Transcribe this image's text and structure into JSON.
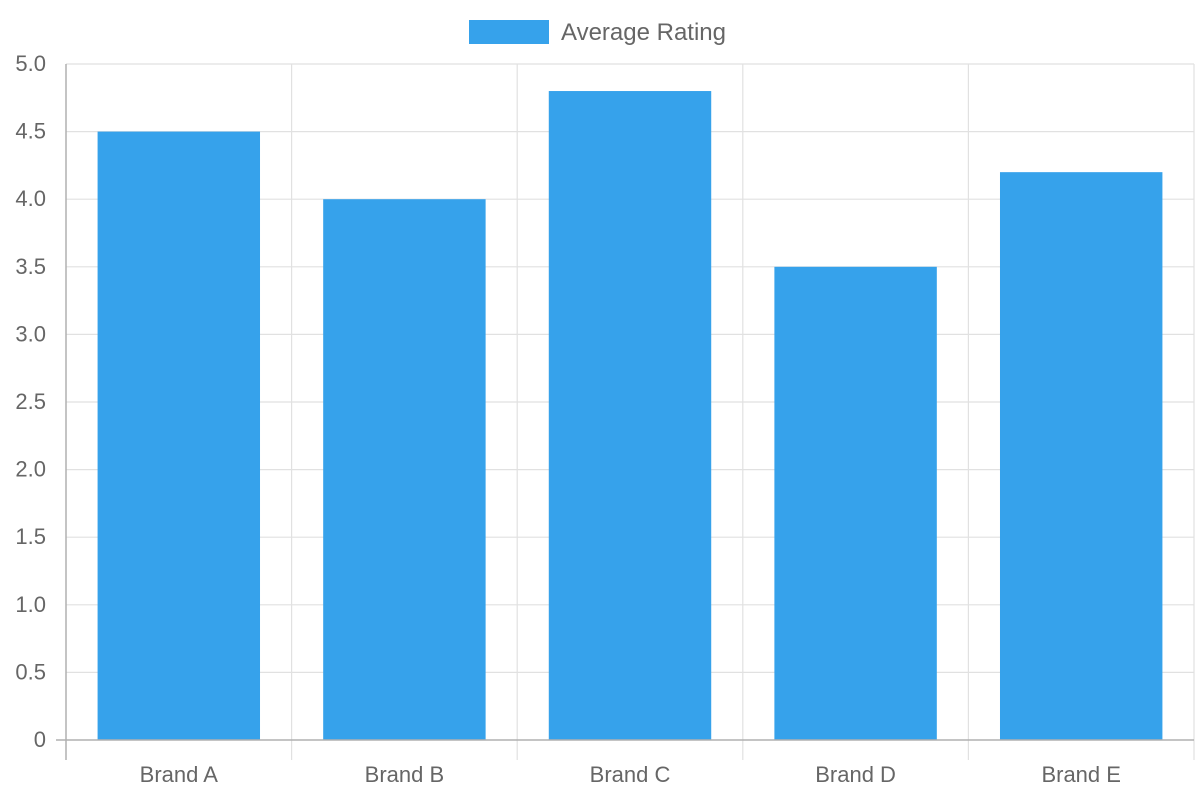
{
  "chart_data": {
    "type": "bar",
    "categories": [
      "Brand A",
      "Brand B",
      "Brand C",
      "Brand D",
      "Brand E"
    ],
    "series": [
      {
        "name": "Average Rating",
        "values": [
          4.5,
          4.0,
          4.8,
          3.5,
          4.2
        ],
        "color": "#36a2eb"
      }
    ],
    "ylim": [
      0,
      5
    ],
    "yticks": [
      "0",
      "0.5",
      "1.0",
      "1.5",
      "2.0",
      "2.5",
      "3.0",
      "3.5",
      "4.0",
      "4.5",
      "5.0"
    ],
    "grid": true,
    "legend_position": "top",
    "title": "",
    "xlabel": "",
    "ylabel": ""
  }
}
